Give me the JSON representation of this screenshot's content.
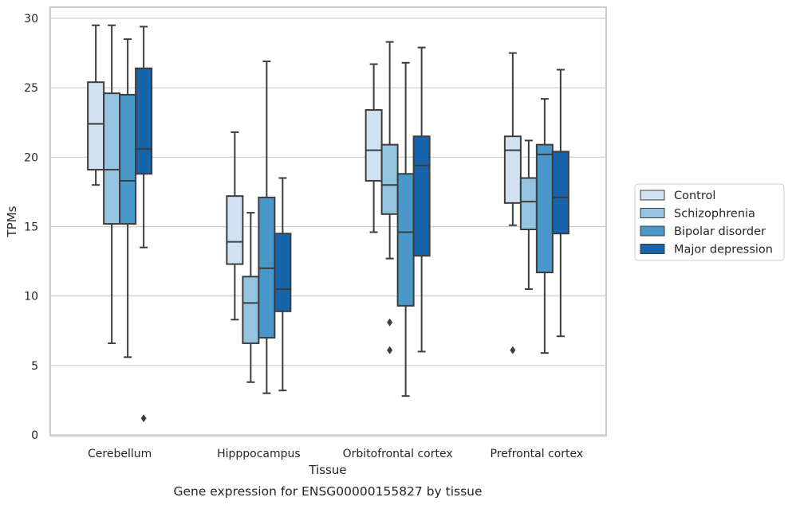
{
  "chart_data": {
    "type": "box",
    "xlabel": "Tissue",
    "ylabel": "TPMs",
    "caption": "Gene expression for ENSG00000155827 by tissue",
    "ylim": [
      0,
      30.6
    ],
    "yticks": [
      0,
      5,
      10,
      15,
      20,
      25,
      30
    ],
    "grid": "horizontal",
    "legend_position": "right",
    "categories": [
      "Cerebellum",
      "Hipppocampus",
      "Orbitofrontal cortex",
      "Prefrontal cortex"
    ],
    "series": [
      {
        "name": "Control",
        "color": "#d0e1f2",
        "boxes": [
          {
            "whislo": 18.0,
            "q1": 19.1,
            "med": 22.4,
            "q3": 25.4,
            "whishi": 29.5,
            "fliers": []
          },
          {
            "whislo": 8.3,
            "q1": 12.3,
            "med": 13.9,
            "q3": 17.2,
            "whishi": 21.8,
            "fliers": []
          },
          {
            "whislo": 14.6,
            "q1": 18.3,
            "med": 20.5,
            "q3": 23.4,
            "whishi": 26.7,
            "fliers": []
          },
          {
            "whislo": 15.1,
            "q1": 16.7,
            "med": 20.5,
            "q3": 21.5,
            "whishi": 27.5,
            "fliers": [
              6.1
            ]
          }
        ]
      },
      {
        "name": "Schizophrenia",
        "color": "#94c4df",
        "boxes": [
          {
            "whislo": 6.6,
            "q1": 15.2,
            "med": 19.1,
            "q3": 24.6,
            "whishi": 29.5,
            "fliers": []
          },
          {
            "whislo": 3.8,
            "q1": 6.6,
            "med": 9.5,
            "q3": 11.4,
            "whishi": 16.0,
            "fliers": []
          },
          {
            "whislo": 12.7,
            "q1": 15.9,
            "med": 18.0,
            "q3": 20.9,
            "whishi": 28.3,
            "fliers": [
              6.1,
              8.1
            ]
          },
          {
            "whislo": 10.5,
            "q1": 14.8,
            "med": 16.8,
            "q3": 18.5,
            "whishi": 21.2,
            "fliers": []
          }
        ]
      },
      {
        "name": "Bipolar disorder",
        "color": "#4a98c9",
        "boxes": [
          {
            "whislo": 5.6,
            "q1": 15.2,
            "med": 18.3,
            "q3": 24.5,
            "whishi": 28.5,
            "fliers": []
          },
          {
            "whislo": 3.0,
            "q1": 7.0,
            "med": 12.0,
            "q3": 17.1,
            "whishi": 26.9,
            "fliers": []
          },
          {
            "whislo": 2.8,
            "q1": 9.3,
            "med": 14.6,
            "q3": 18.8,
            "whishi": 26.8,
            "fliers": []
          },
          {
            "whislo": 5.9,
            "q1": 11.7,
            "med": 20.2,
            "q3": 20.9,
            "whishi": 24.2,
            "fliers": []
          }
        ]
      },
      {
        "name": "Major depression",
        "color": "#1764ab",
        "boxes": [
          {
            "whislo": 13.5,
            "q1": 18.8,
            "med": 20.6,
            "q3": 26.4,
            "whishi": 29.4,
            "fliers": [
              1.2
            ]
          },
          {
            "whislo": 3.2,
            "q1": 8.9,
            "med": 10.5,
            "q3": 14.5,
            "whishi": 18.5,
            "fliers": []
          },
          {
            "whislo": 6.0,
            "q1": 12.9,
            "med": 19.4,
            "q3": 21.5,
            "whishi": 27.9,
            "fliers": []
          },
          {
            "whislo": 7.1,
            "q1": 14.5,
            "med": 17.1,
            "q3": 20.4,
            "whishi": 26.3,
            "fliers": []
          }
        ]
      }
    ]
  }
}
